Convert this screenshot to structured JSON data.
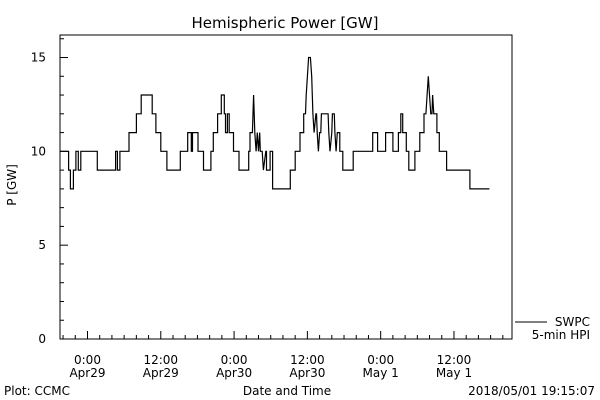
{
  "footer": {
    "plot_credit": "Plot: CCMC",
    "timestamp": "2018/05/01 19:15:07"
  },
  "chart_data": {
    "type": "line",
    "title": "Hemispheric Power [GW]",
    "xlabel": "Date and Time",
    "ylabel": "P [GW]",
    "ylim": [
      0,
      16.2
    ],
    "yticks": [
      0,
      5,
      10,
      15
    ],
    "xlim": [
      -4.5,
      69.5
    ],
    "xticks": [
      {
        "hour": 0,
        "time": "0:00",
        "date": "Apr29"
      },
      {
        "hour": 12,
        "time": "12:00",
        "date": "Apr29"
      },
      {
        "hour": 24,
        "time": "0:00",
        "date": "Apr30"
      },
      {
        "hour": 36,
        "time": "12:00",
        "date": "Apr30"
      },
      {
        "hour": 48,
        "time": "0:00",
        "date": "May 1"
      },
      {
        "hour": 60,
        "time": "12:00",
        "date": "May 1"
      }
    ],
    "x_unit": "hours after 2018-04-29 00:00",
    "legend": {
      "position": "bottom-right",
      "label1": "SWPC",
      "label2": "5-min HPI"
    },
    "grid": false,
    "series": [
      {
        "name": "SWPC",
        "points": [
          [
            -4.5,
            10
          ],
          [
            -3.1,
            10
          ],
          [
            -3.1,
            9
          ],
          [
            -2.8,
            9
          ],
          [
            -2.8,
            8
          ],
          [
            -2.3,
            8
          ],
          [
            -2.3,
            9
          ],
          [
            -1.9,
            9
          ],
          [
            -1.9,
            10
          ],
          [
            -1.5,
            10
          ],
          [
            -1.5,
            9
          ],
          [
            -1.1,
            9
          ],
          [
            -1.1,
            10
          ],
          [
            1.6,
            10
          ],
          [
            1.6,
            9
          ],
          [
            4.6,
            9
          ],
          [
            4.6,
            10
          ],
          [
            4.9,
            10
          ],
          [
            4.9,
            9
          ],
          [
            5.3,
            9
          ],
          [
            5.3,
            10
          ],
          [
            6.8,
            10
          ],
          [
            6.8,
            11
          ],
          [
            8.0,
            11
          ],
          [
            8.0,
            12
          ],
          [
            8.8,
            12
          ],
          [
            8.8,
            13
          ],
          [
            10.6,
            13
          ],
          [
            10.6,
            12
          ],
          [
            11.2,
            12
          ],
          [
            11.2,
            11
          ],
          [
            12.0,
            11
          ],
          [
            12.0,
            10
          ],
          [
            13.0,
            10
          ],
          [
            13.0,
            9
          ],
          [
            15.2,
            9
          ],
          [
            15.2,
            10
          ],
          [
            16.4,
            10
          ],
          [
            16.4,
            11
          ],
          [
            17.0,
            11
          ],
          [
            17.0,
            10
          ],
          [
            17.2,
            10
          ],
          [
            17.2,
            11
          ],
          [
            18.1,
            11
          ],
          [
            18.1,
            10
          ],
          [
            19.0,
            10
          ],
          [
            19.0,
            9
          ],
          [
            20.2,
            9
          ],
          [
            20.2,
            10
          ],
          [
            20.6,
            10
          ],
          [
            20.6,
            11
          ],
          [
            21.3,
            11
          ],
          [
            21.3,
            12
          ],
          [
            21.9,
            12
          ],
          [
            21.9,
            13
          ],
          [
            22.4,
            13
          ],
          [
            22.4,
            12
          ],
          [
            22.6,
            12
          ],
          [
            22.6,
            11
          ],
          [
            22.9,
            11
          ],
          [
            22.9,
            12
          ],
          [
            23.2,
            12
          ],
          [
            23.2,
            11
          ],
          [
            23.9,
            11
          ],
          [
            23.9,
            10
          ],
          [
            24.8,
            10
          ],
          [
            24.8,
            9
          ],
          [
            26.4,
            9
          ],
          [
            26.4,
            10
          ],
          [
            26.6,
            10
          ],
          [
            26.6,
            11
          ],
          [
            27.0,
            11
          ],
          [
            27.1,
            12
          ],
          [
            27.2,
            13
          ],
          [
            27.3,
            12
          ],
          [
            27.4,
            11
          ],
          [
            27.6,
            10
          ],
          [
            27.8,
            11
          ],
          [
            28.0,
            10
          ],
          [
            28.2,
            11
          ],
          [
            28.3,
            10
          ],
          [
            28.6,
            10
          ],
          [
            28.8,
            9
          ],
          [
            29.2,
            10
          ],
          [
            29.3,
            10
          ],
          [
            29.3,
            9
          ],
          [
            29.9,
            9
          ],
          [
            29.9,
            10
          ],
          [
            30.3,
            10
          ],
          [
            30.3,
            8
          ],
          [
            33.2,
            8
          ],
          [
            33.2,
            9
          ],
          [
            34.0,
            9
          ],
          [
            34.0,
            10
          ],
          [
            34.8,
            10
          ],
          [
            34.8,
            11
          ],
          [
            35.4,
            11
          ],
          [
            35.4,
            12
          ],
          [
            35.7,
            12
          ],
          [
            35.8,
            13
          ],
          [
            36.0,
            14
          ],
          [
            36.2,
            15
          ],
          [
            36.5,
            15
          ],
          [
            36.7,
            14
          ],
          [
            36.8,
            13
          ],
          [
            36.9,
            12
          ],
          [
            37.1,
            11
          ],
          [
            37.4,
            12
          ],
          [
            37.5,
            12
          ],
          [
            37.6,
            11
          ],
          [
            37.8,
            10
          ],
          [
            38.0,
            11
          ],
          [
            38.2,
            11
          ],
          [
            38.3,
            12
          ],
          [
            39.4,
            12
          ],
          [
            39.5,
            11
          ],
          [
            39.7,
            10
          ],
          [
            40.0,
            11
          ],
          [
            40.1,
            12
          ],
          [
            40.4,
            12
          ],
          [
            40.5,
            11
          ],
          [
            40.7,
            10
          ],
          [
            40.9,
            11
          ],
          [
            41.3,
            11
          ],
          [
            41.3,
            10
          ],
          [
            41.8,
            10
          ],
          [
            41.8,
            9
          ],
          [
            43.5,
            9
          ],
          [
            43.5,
            10
          ],
          [
            46.7,
            10
          ],
          [
            46.7,
            11
          ],
          [
            47.5,
            11
          ],
          [
            47.5,
            10
          ],
          [
            48.8,
            10
          ],
          [
            48.8,
            11
          ],
          [
            50.0,
            11
          ],
          [
            50.0,
            10
          ],
          [
            50.9,
            10
          ],
          [
            50.9,
            11
          ],
          [
            51.3,
            11
          ],
          [
            51.3,
            12
          ],
          [
            51.6,
            12
          ],
          [
            51.6,
            11
          ],
          [
            52.2,
            11
          ],
          [
            52.2,
            10
          ],
          [
            52.6,
            10
          ],
          [
            52.6,
            9
          ],
          [
            53.6,
            9
          ],
          [
            53.6,
            10
          ],
          [
            54.4,
            10
          ],
          [
            54.4,
            11
          ],
          [
            55.1,
            11
          ],
          [
            55.1,
            12
          ],
          [
            55.4,
            12
          ],
          [
            55.6,
            13
          ],
          [
            55.8,
            14
          ],
          [
            56.0,
            13
          ],
          [
            56.2,
            12
          ],
          [
            56.4,
            12
          ],
          [
            56.5,
            13
          ],
          [
            56.7,
            12
          ],
          [
            57.2,
            12
          ],
          [
            57.2,
            11
          ],
          [
            57.6,
            11
          ],
          [
            57.6,
            10
          ],
          [
            58.8,
            10
          ],
          [
            58.8,
            9
          ],
          [
            62.6,
            9
          ],
          [
            62.6,
            8
          ],
          [
            65.8,
            8
          ]
        ]
      },
      {
        "name": "5-min HPI",
        "points": []
      }
    ]
  }
}
